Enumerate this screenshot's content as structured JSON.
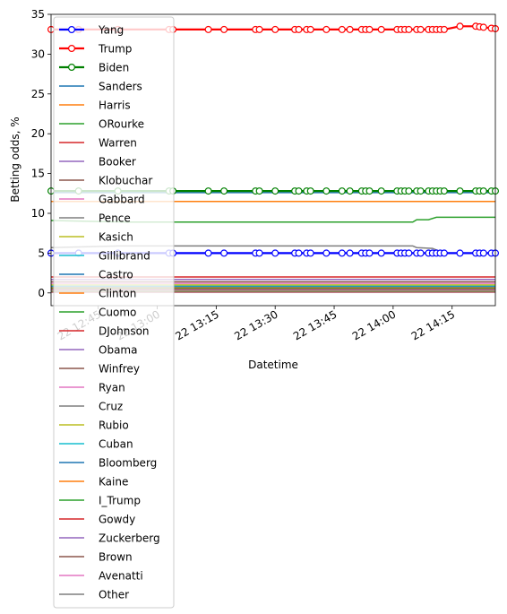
{
  "chart_data": {
    "type": "line",
    "title": "",
    "xlabel": "Datetime",
    "ylabel": "Betting odds, %",
    "ylim": [
      -1.6,
      35
    ],
    "xlim": [
      "12:33",
      "14:26"
    ],
    "grid": false,
    "legend_position": "top-left",
    "y_ticks": [
      0,
      5,
      10,
      15,
      20,
      25,
      30,
      35
    ],
    "x_ticks": [
      {
        "t": "12:45",
        "label": "22 12:45"
      },
      {
        "t": "13:00",
        "label": "22 13:00"
      },
      {
        "t": "13:15",
        "label": "22 13:15"
      },
      {
        "t": "13:30",
        "label": "22 13:30"
      },
      {
        "t": "13:45",
        "label": "22 13:45"
      },
      {
        "t": "14:00",
        "label": "22 14:00"
      },
      {
        "t": "14:15",
        "label": "22 14:15"
      }
    ],
    "marker_times": [
      "12:33",
      "12:40",
      "12:50",
      "13:03",
      "13:04",
      "13:13",
      "13:17",
      "13:25",
      "13:26",
      "13:30",
      "13:35",
      "13:36",
      "13:38",
      "13:39",
      "13:43",
      "13:47",
      "13:49",
      "13:52",
      "13:53",
      "13:54",
      "13:57",
      "14:01",
      "14:02",
      "14:03",
      "14:04",
      "14:06",
      "14:07",
      "14:09",
      "14:10",
      "14:11",
      "14:12",
      "14:13",
      "14:17",
      "14:21",
      "14:22",
      "14:23",
      "14:25",
      "14:26"
    ],
    "series": [
      {
        "name": "Yang",
        "color": "#0000ff",
        "bold": true,
        "markers": true,
        "points": [
          [
            "12:33",
            5.0
          ],
          [
            "14:16",
            5.0
          ],
          [
            "14:26",
            5.0
          ]
        ]
      },
      {
        "name": "Trump",
        "color": "#ff0000",
        "bold": true,
        "markers": true,
        "points": [
          [
            "12:33",
            33.1
          ],
          [
            "14:13",
            33.1
          ],
          [
            "14:17",
            33.5
          ],
          [
            "14:21",
            33.5
          ],
          [
            "14:26",
            33.2
          ]
        ]
      },
      {
        "name": "Biden",
        "color": "#008000",
        "bold": true,
        "markers": true,
        "points": [
          [
            "12:33",
            12.8
          ],
          [
            "14:26",
            12.8
          ]
        ]
      },
      {
        "name": "Sanders",
        "color": "#1f77b4",
        "points": [
          [
            "12:33",
            12.6
          ],
          [
            "14:26",
            12.6
          ]
        ]
      },
      {
        "name": "Harris",
        "color": "#ff7f0e",
        "points": [
          [
            "12:33",
            11.5
          ],
          [
            "14:26",
            11.5
          ]
        ]
      },
      {
        "name": "ORourke",
        "color": "#2ca02c",
        "points": [
          [
            "12:33",
            9.1
          ],
          [
            "12:53",
            8.9
          ],
          [
            "14:05",
            8.9
          ],
          [
            "14:06",
            9.2
          ],
          [
            "14:09",
            9.2
          ],
          [
            "14:11",
            9.5
          ],
          [
            "14:26",
            9.5
          ]
        ]
      },
      {
        "name": "Warren",
        "color": "#d62728",
        "points": [
          [
            "12:33",
            2.0
          ],
          [
            "14:26",
            2.0
          ]
        ]
      },
      {
        "name": "Booker",
        "color": "#9467bd",
        "points": [
          [
            "12:33",
            1.7
          ],
          [
            "14:26",
            1.7
          ]
        ]
      },
      {
        "name": "Klobuchar",
        "color": "#8c564b",
        "points": [
          [
            "12:33",
            1.4
          ],
          [
            "14:26",
            1.4
          ]
        ]
      },
      {
        "name": "Gabbard",
        "color": "#e377c2",
        "points": [
          [
            "12:33",
            1.2
          ],
          [
            "14:26",
            1.2
          ]
        ]
      },
      {
        "name": "Pence",
        "color": "#7f7f7f",
        "points": [
          [
            "12:33",
            5.7
          ],
          [
            "12:50",
            5.9
          ],
          [
            "14:05",
            5.9
          ],
          [
            "14:06",
            5.7
          ],
          [
            "14:10",
            5.6
          ],
          [
            "14:13",
            5.0
          ],
          [
            "14:26",
            5.0
          ]
        ]
      },
      {
        "name": "Kasich",
        "color": "#bcbd22",
        "points": [
          [
            "12:33",
            1.0
          ],
          [
            "14:26",
            1.0
          ]
        ]
      },
      {
        "name": "Gillibrand",
        "color": "#17becf",
        "points": [
          [
            "12:33",
            0.9
          ],
          [
            "14:26",
            0.9
          ]
        ]
      },
      {
        "name": "Castro",
        "color": "#1f77b4",
        "points": [
          [
            "12:33",
            0.8
          ],
          [
            "14:26",
            0.8
          ]
        ]
      },
      {
        "name": "Clinton",
        "color": "#ff7f0e",
        "points": [
          [
            "12:33",
            0.7
          ],
          [
            "14:26",
            0.7
          ]
        ]
      },
      {
        "name": "Cuomo",
        "color": "#2ca02c",
        "points": [
          [
            "12:33",
            0.6
          ],
          [
            "14:26",
            0.6
          ]
        ]
      },
      {
        "name": "DJohnson",
        "color": "#d62728",
        "points": [
          [
            "12:33",
            0.55
          ],
          [
            "14:26",
            0.55
          ]
        ]
      },
      {
        "name": "Obama",
        "color": "#9467bd",
        "points": [
          [
            "12:33",
            0.5
          ],
          [
            "14:26",
            0.5
          ]
        ]
      },
      {
        "name": "Winfrey",
        "color": "#8c564b",
        "points": [
          [
            "12:33",
            0.45
          ],
          [
            "14:26",
            0.45
          ]
        ]
      },
      {
        "name": "Ryan",
        "color": "#e377c2",
        "points": [
          [
            "12:33",
            0.4
          ],
          [
            "14:26",
            0.4
          ]
        ]
      },
      {
        "name": "Cruz",
        "color": "#7f7f7f",
        "points": [
          [
            "12:33",
            0.35
          ],
          [
            "14:26",
            0.35
          ]
        ]
      },
      {
        "name": "Rubio",
        "color": "#bcbd22",
        "points": [
          [
            "12:33",
            0.3
          ],
          [
            "14:26",
            0.3
          ]
        ]
      },
      {
        "name": "Cuban",
        "color": "#17becf",
        "points": [
          [
            "12:33",
            0.3
          ],
          [
            "14:26",
            0.3
          ]
        ]
      },
      {
        "name": "Bloomberg",
        "color": "#1f77b4",
        "points": [
          [
            "12:33",
            0.25
          ],
          [
            "14:26",
            0.25
          ]
        ]
      },
      {
        "name": "Kaine",
        "color": "#ff7f0e",
        "points": [
          [
            "12:33",
            0.2
          ],
          [
            "14:26",
            0.2
          ]
        ]
      },
      {
        "name": "I_Trump",
        "color": "#2ca02c",
        "points": [
          [
            "12:33",
            0.2
          ],
          [
            "14:26",
            0.2
          ]
        ]
      },
      {
        "name": "Gowdy",
        "color": "#d62728",
        "points": [
          [
            "12:33",
            0.15
          ],
          [
            "14:26",
            0.15
          ]
        ]
      },
      {
        "name": "Zuckerberg",
        "color": "#9467bd",
        "points": [
          [
            "12:33",
            0.15
          ],
          [
            "14:26",
            0.15
          ]
        ]
      },
      {
        "name": "Brown",
        "color": "#8c564b",
        "points": [
          [
            "12:33",
            0.1
          ],
          [
            "14:26",
            0.1
          ]
        ]
      },
      {
        "name": "Avenatti",
        "color": "#e377c2",
        "points": [
          [
            "12:33",
            0.1
          ],
          [
            "14:26",
            0.1
          ]
        ]
      },
      {
        "name": "Other",
        "color": "#7f7f7f",
        "points": [
          [
            "12:33",
            0.6
          ],
          [
            "14:26",
            0.6
          ]
        ]
      }
    ]
  }
}
